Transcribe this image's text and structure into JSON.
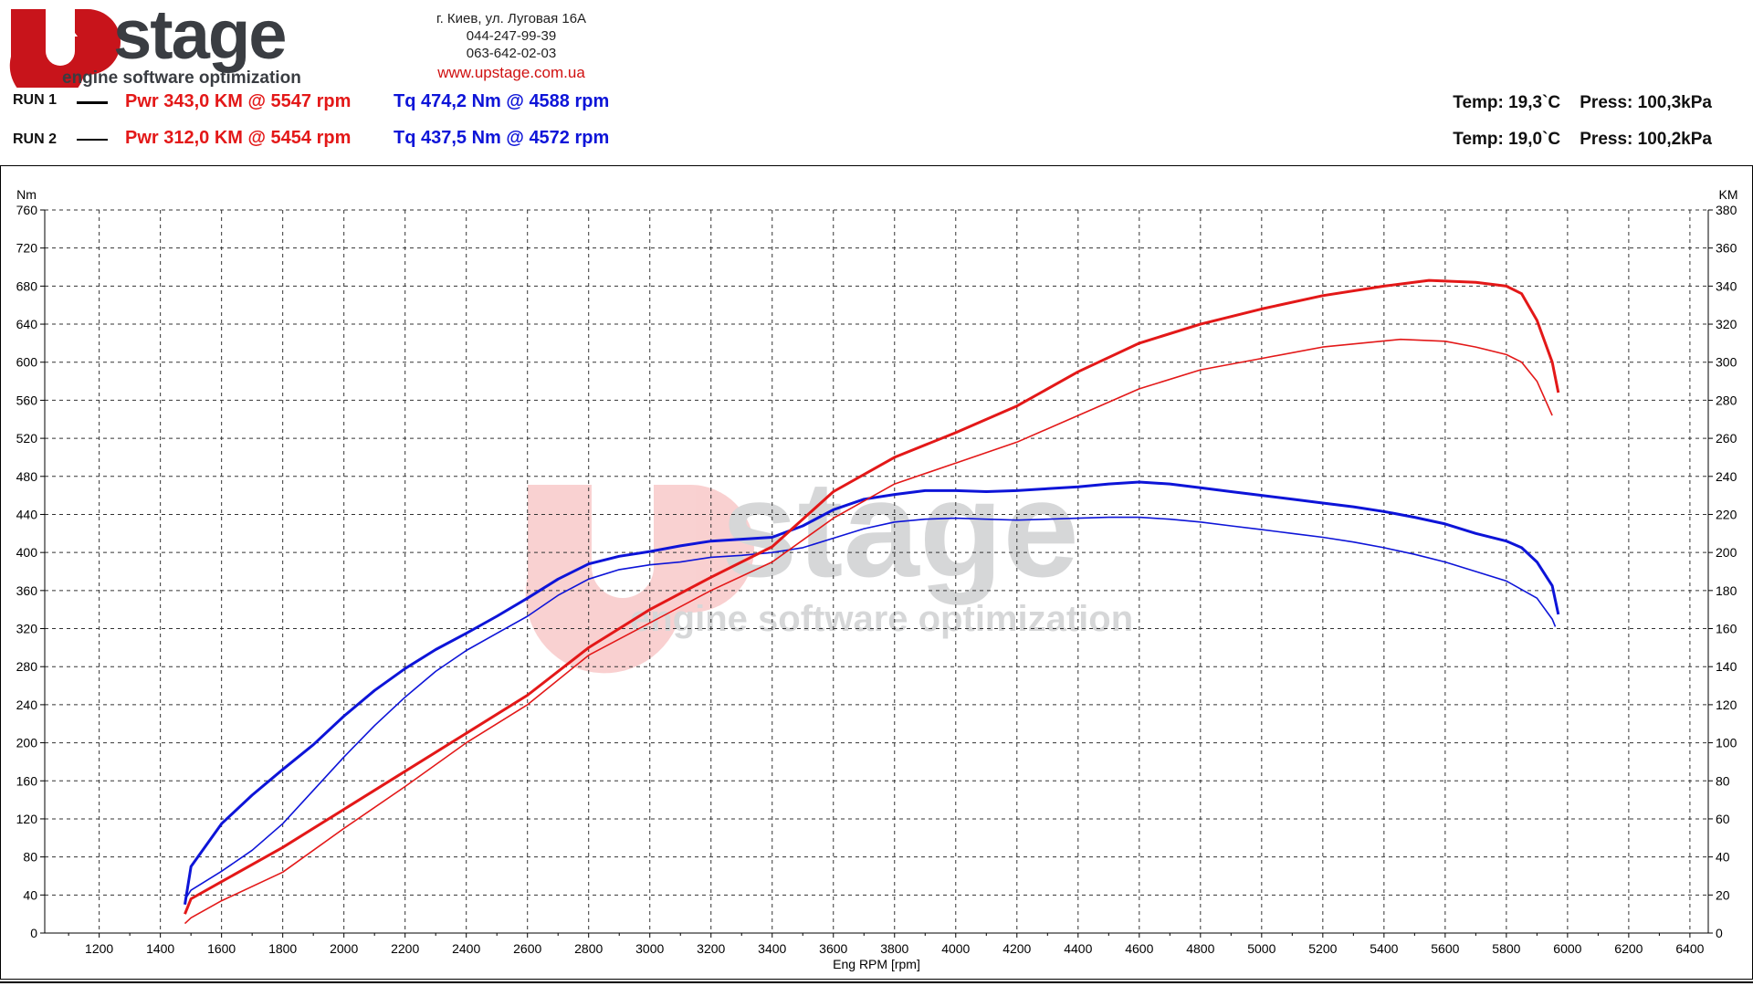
{
  "header": {
    "logo_text": "Upstage",
    "logo_tagline": "engine software optimization",
    "address": "г. Киев, ул. Луговая 16А",
    "phone1": "044-247-99-39",
    "phone2": "063-642-02-03",
    "website": "www.upstage.com.ua"
  },
  "runs": [
    {
      "label": "RUN 1",
      "power": "Pwr  343,0 KM @ 5547 rpm",
      "torque": "Tq 474,2 Nm @ 4588 rpm",
      "conditions": "Temp: 19,3`C    Press: 100,3kPa"
    },
    {
      "label": "RUN 2",
      "power": "Pwr  312,0 KM @ 5454 rpm",
      "torque": "Tq 437,5 Nm @ 4572 rpm",
      "conditions": "Temp: 19,0`C    Press: 100,2kPa"
    }
  ],
  "colors": {
    "power": "#e31818",
    "torque": "#0d14d8",
    "logo_red": "#c8141b",
    "logo_grey": "#3a3d42"
  },
  "chart_data": {
    "type": "line",
    "xlabel": "Eng RPM [rpm]",
    "ylabel_left": "Nm",
    "ylabel_right": "KM",
    "xlim": [
      1022,
      6460
    ],
    "ylim_left": [
      0,
      760
    ],
    "ylim_right": [
      0,
      380
    ],
    "x_ticks": [
      1200,
      1400,
      1600,
      1800,
      2000,
      2200,
      2400,
      2600,
      2800,
      3000,
      3200,
      3400,
      3600,
      3800,
      4000,
      4200,
      4400,
      4600,
      4800,
      5000,
      5200,
      5400,
      5600,
      5800,
      6000,
      6200,
      6400
    ],
    "y_ticks_left": [
      0,
      40,
      80,
      120,
      160,
      200,
      240,
      280,
      320,
      360,
      400,
      440,
      480,
      520,
      560,
      600,
      640,
      680,
      720,
      760
    ],
    "y_ticks_right": [
      0,
      20,
      40,
      60,
      80,
      100,
      120,
      140,
      160,
      180,
      200,
      220,
      240,
      260,
      280,
      300,
      320,
      340,
      360,
      380
    ],
    "grid": true,
    "series": [
      {
        "run": "RUN 1",
        "quantity": "torque",
        "axis": "left",
        "color": "#0d14d8",
        "x": [
          1480,
          1500,
          1600,
          1700,
          1800,
          1900,
          2000,
          2100,
          2200,
          2300,
          2400,
          2500,
          2600,
          2700,
          2800,
          2900,
          3000,
          3100,
          3200,
          3300,
          3400,
          3500,
          3600,
          3700,
          3800,
          3900,
          4000,
          4100,
          4200,
          4300,
          4400,
          4500,
          4600,
          4700,
          4800,
          4900,
          5000,
          5100,
          5200,
          5300,
          5400,
          5500,
          5600,
          5700,
          5800,
          5850,
          5900,
          5950,
          5970
        ],
        "y": [
          30,
          70,
          115,
          145,
          172,
          198,
          228,
          255,
          278,
          298,
          315,
          333,
          352,
          372,
          388,
          396,
          401,
          407,
          412,
          414,
          416,
          428,
          445,
          456,
          461,
          465,
          465,
          464,
          465,
          467,
          469,
          472,
          474,
          472,
          468,
          464,
          460,
          456,
          452,
          448,
          443,
          437,
          430,
          420,
          412,
          405,
          390,
          365,
          335
        ]
      },
      {
        "run": "RUN 2",
        "quantity": "torque",
        "axis": "left",
        "color": "#0d14d8",
        "x": [
          1480,
          1500,
          1600,
          1700,
          1800,
          1900,
          2000,
          2100,
          2200,
          2300,
          2400,
          2500,
          2600,
          2700,
          2800,
          2900,
          3000,
          3100,
          3200,
          3300,
          3400,
          3500,
          3600,
          3700,
          3800,
          3900,
          4000,
          4100,
          4200,
          4300,
          4400,
          4500,
          4600,
          4700,
          4800,
          4900,
          5000,
          5100,
          5200,
          5300,
          5400,
          5500,
          5600,
          5700,
          5800,
          5900,
          5950,
          5960
        ],
        "y": [
          35,
          45,
          65,
          87,
          115,
          150,
          185,
          218,
          248,
          275,
          297,
          315,
          333,
          355,
          372,
          382,
          387,
          390,
          395,
          397,
          400,
          405,
          415,
          425,
          432,
          435,
          436,
          435,
          434,
          435,
          436,
          437,
          437,
          435,
          432,
          428,
          424,
          420,
          416,
          411,
          405,
          398,
          390,
          380,
          370,
          352,
          330,
          322
        ]
      },
      {
        "run": "RUN 1",
        "quantity": "power",
        "axis": "right",
        "color": "#e31818",
        "x": [
          1480,
          1500,
          1600,
          1800,
          2000,
          2200,
          2400,
          2600,
          2800,
          3000,
          3200,
          3400,
          3600,
          3800,
          4000,
          4200,
          4400,
          4600,
          4800,
          5000,
          5200,
          5400,
          5547,
          5700,
          5800,
          5850,
          5900,
          5950,
          5970
        ],
        "y": [
          10,
          18,
          27,
          45,
          65,
          85,
          105,
          125,
          150,
          170,
          187,
          203,
          232,
          250,
          263,
          277,
          295,
          310,
          320,
          328,
          335,
          340,
          343,
          342,
          340,
          336,
          322,
          300,
          284
        ]
      },
      {
        "run": "RUN 2",
        "quantity": "power",
        "axis": "right",
        "color": "#e31818",
        "x": [
          1480,
          1500,
          1600,
          1800,
          2000,
          2200,
          2400,
          2600,
          2800,
          3000,
          3200,
          3400,
          3600,
          3800,
          4000,
          4200,
          4400,
          4600,
          4800,
          5000,
          5200,
          5454,
          5600,
          5700,
          5800,
          5850,
          5900,
          5950
        ],
        "y": [
          5,
          8,
          17,
          32,
          55,
          77,
          100,
          120,
          146,
          163,
          180,
          195,
          218,
          236,
          247,
          258,
          272,
          286,
          296,
          302,
          308,
          312,
          311,
          308,
          304,
          300,
          290,
          272
        ]
      }
    ]
  }
}
